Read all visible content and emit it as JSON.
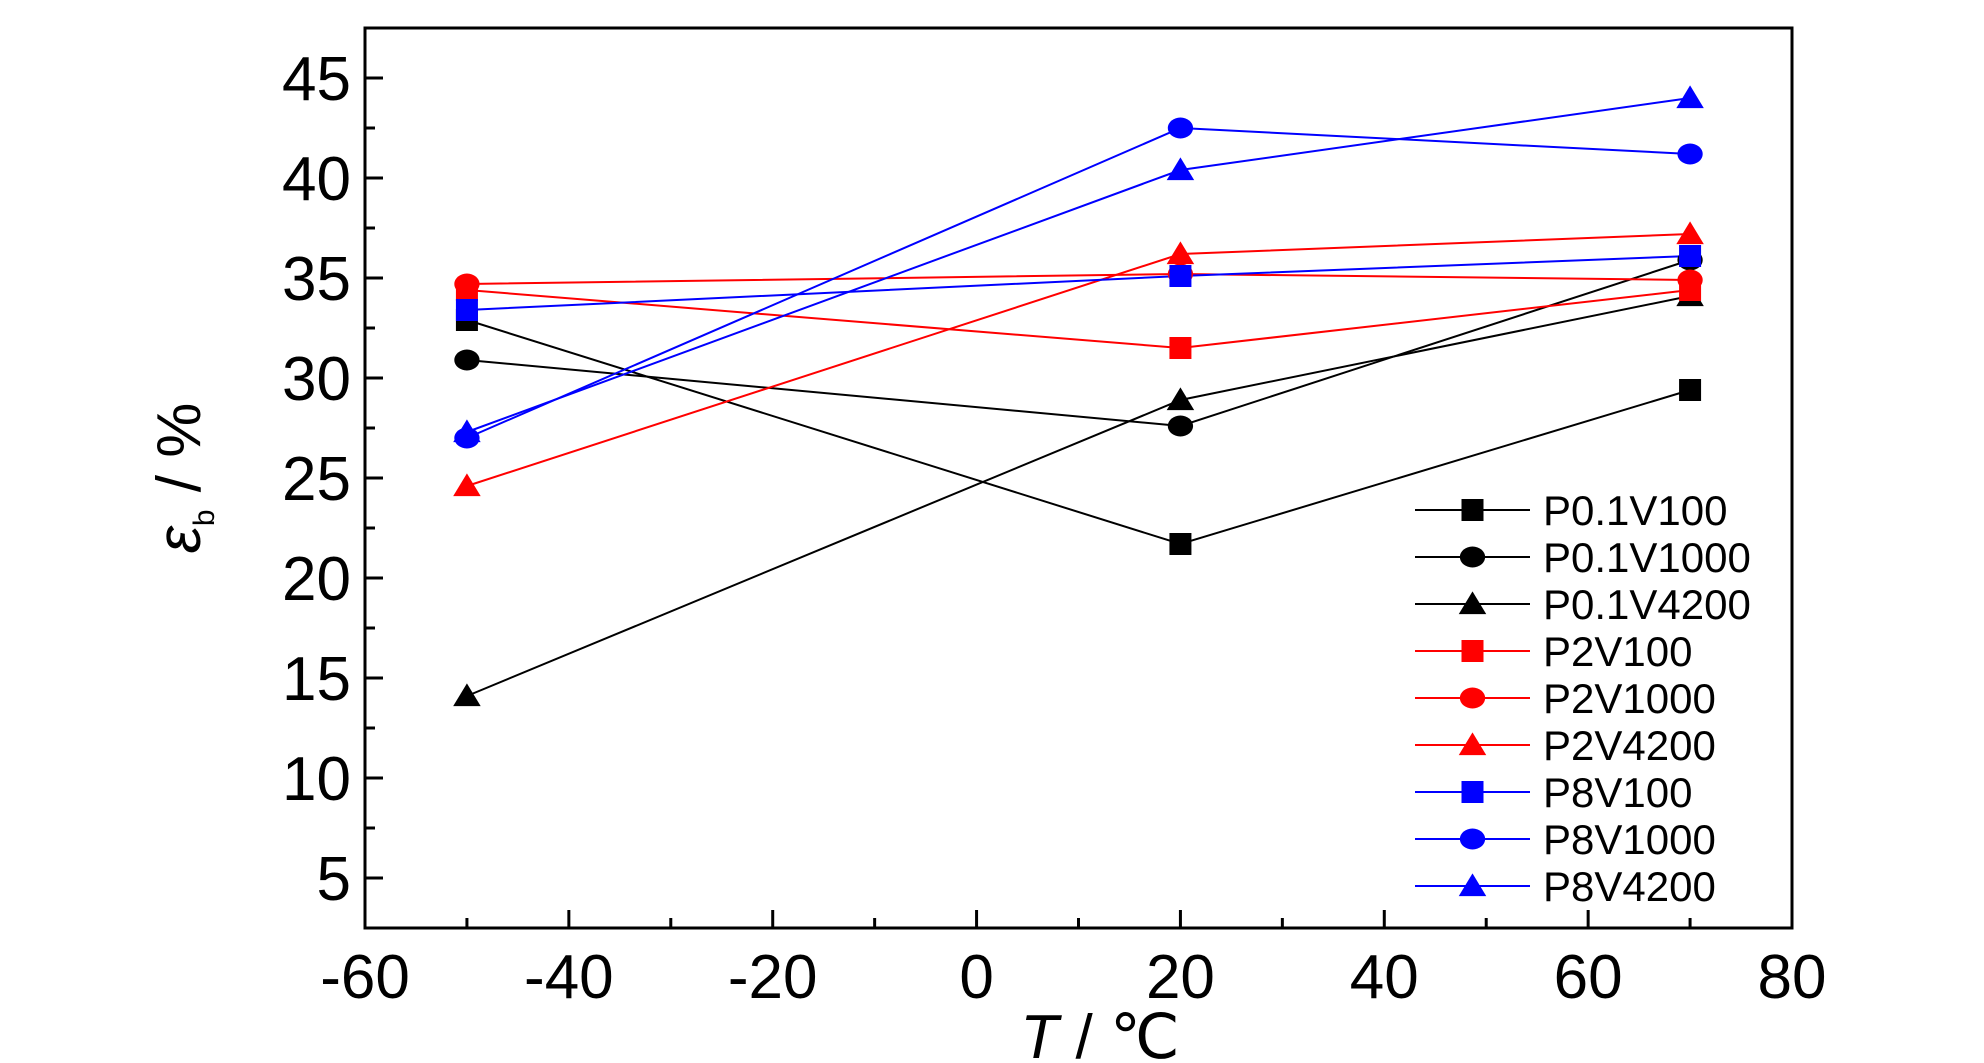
{
  "chart_data": {
    "type": "line",
    "xlabel": "T / ℃",
    "xlabel_parts": {
      "symbol": "T",
      "unit": " / ℃"
    },
    "ylabel": "εb / %",
    "ylabel_parts": {
      "symbol": "ε",
      "subscript": "b",
      "unit": " / %"
    },
    "xlim": [
      -60,
      80
    ],
    "ylim": [
      2.5,
      47.5
    ],
    "x_ticks": [
      -60,
      -40,
      -20,
      0,
      20,
      40,
      60,
      80
    ],
    "y_ticks": [
      5,
      10,
      15,
      20,
      25,
      30,
      35,
      40,
      45
    ],
    "x_tick_labels": [
      "-60",
      "-40",
      "-20",
      "0",
      "20",
      "40",
      "60",
      "80"
    ],
    "y_tick_labels": [
      "5",
      "10",
      "15",
      "20",
      "25",
      "30",
      "35",
      "40",
      "45"
    ],
    "grid": false,
    "legend_position": "bottom-right",
    "x": [
      -50,
      20,
      70
    ],
    "series": [
      {
        "name": "P0.1V100",
        "color": "#000000",
        "marker": "square",
        "values": [
          32.9,
          21.7,
          29.4
        ]
      },
      {
        "name": "P0.1V1000",
        "color": "#000000",
        "marker": "circle",
        "values": [
          30.9,
          27.6,
          35.9
        ]
      },
      {
        "name": "P0.1V4200",
        "color": "#000000",
        "marker": "triangle",
        "values": [
          14.1,
          28.9,
          34.1
        ]
      },
      {
        "name": "P2V100",
        "color": "#ff0000",
        "marker": "square",
        "values": [
          34.4,
          31.5,
          34.4
        ]
      },
      {
        "name": "P2V1000",
        "color": "#ff0000",
        "marker": "circle",
        "values": [
          34.7,
          35.2,
          34.9
        ]
      },
      {
        "name": "P2V4200",
        "color": "#ff0000",
        "marker": "triangle",
        "values": [
          24.6,
          36.2,
          37.2
        ]
      },
      {
        "name": "P8V100",
        "color": "#0000ff",
        "marker": "square",
        "values": [
          33.4,
          35.1,
          36.1
        ]
      },
      {
        "name": "P8V1000",
        "color": "#0000ff",
        "marker": "circle",
        "values": [
          27.0,
          42.5,
          41.2
        ]
      },
      {
        "name": "P8V4200",
        "color": "#0000ff",
        "marker": "triangle",
        "values": [
          27.3,
          40.4,
          44.0
        ]
      }
    ]
  }
}
